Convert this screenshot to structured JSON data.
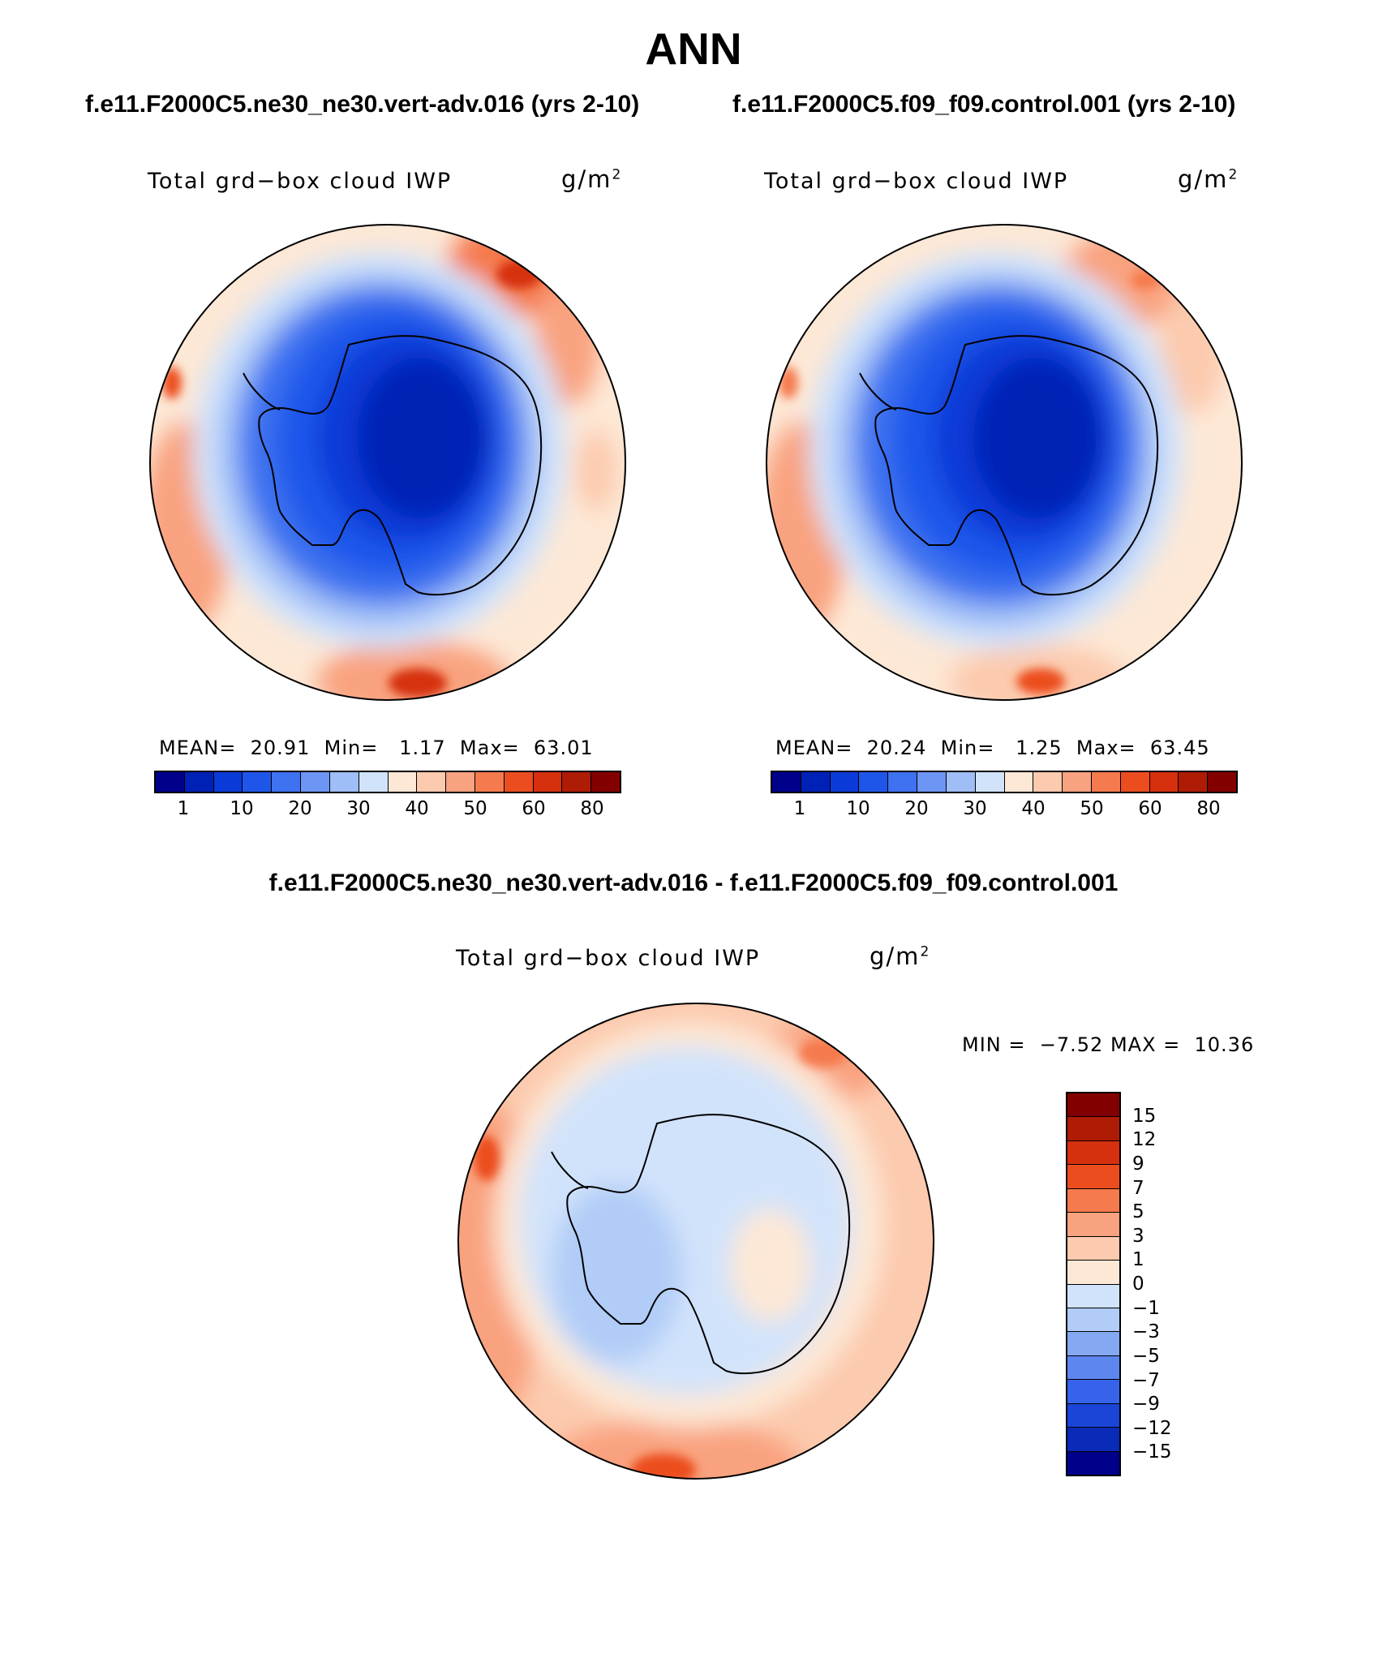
{
  "figure": {
    "title": "ANN",
    "left_case": "f.e11.F2000C5.ne30_ne30.vert-adv.016 (yrs 2-10)",
    "right_case": "f.e11.F2000C5.f09_f09.control.001 (yrs 2-10)",
    "diff_title": "f.e11.F2000C5.ne30_ne30.vert-adv.016 - f.e11.F2000C5.f09_f09.control.001"
  },
  "panels": {
    "left": {
      "variable": "Total grd−box cloud IWP",
      "unit": "g/m",
      "unit_exp": "2",
      "mean_label": "MEAN=",
      "mean": "20.91",
      "min_label": "Min=",
      "min": "1.17",
      "max_label": "Max=",
      "max": "63.01"
    },
    "right": {
      "variable": "Total grd−box cloud IWP",
      "unit": "g/m",
      "unit_exp": "2",
      "mean_label": "MEAN=",
      "mean": "20.24",
      "min_label": "Min=",
      "min": "1.25",
      "max_label": "Max=",
      "max": "63.45"
    },
    "diff": {
      "variable": "Total grd−box cloud IWP",
      "unit": "g/m",
      "unit_exp": "2",
      "min_label": "MIN =",
      "min": "−7.52",
      "max_label": "MAX =",
      "max": "10.36"
    }
  },
  "colorbars": {
    "abs_colors": [
      "#00008b",
      "#0021b5",
      "#0a3ad8",
      "#1f56ea",
      "#3e72f0",
      "#6d95f3",
      "#9fbdf6",
      "#d1e3fb",
      "#fde8d6",
      "#fccaae",
      "#f9a27f",
      "#f57a4d",
      "#ec4d1f",
      "#d6300f",
      "#ae1c05",
      "#820000"
    ],
    "abs_ticks": [
      "1",
      "10",
      "20",
      "30",
      "40",
      "50",
      "60",
      "80"
    ],
    "diff_colors": [
      "#820000",
      "#ae1c05",
      "#d6300f",
      "#ec4d1f",
      "#f57a4d",
      "#f9a27f",
      "#fccaae",
      "#fde8d6",
      "#d1e3fb",
      "#b0ccf7",
      "#85a8f3",
      "#5d86ef",
      "#3663ea",
      "#1a45d6",
      "#0a2ab8",
      "#00008b"
    ],
    "diff_ticks": [
      "15",
      "12",
      "9",
      "7",
      "5",
      "3",
      "1",
      "0",
      "−1",
      "−3",
      "−5",
      "−7",
      "−9",
      "−12",
      "−15"
    ]
  },
  "chart_data": [
    {
      "type": "polar-contour-map",
      "region": "Antarctica / Southern Hemisphere",
      "title": "Total grd-box cloud IWP",
      "units": "g/m2",
      "case": "f.e11.F2000C5.ne30_ne30.vert-adv.016 (yrs 2-10)",
      "mean": 20.91,
      "min": 1.17,
      "max": 63.01,
      "levels": [
        1,
        5,
        10,
        15,
        20,
        25,
        30,
        35,
        40,
        45,
        50,
        55,
        60,
        70,
        80
      ]
    },
    {
      "type": "polar-contour-map",
      "region": "Antarctica / Southern Hemisphere",
      "title": "Total grd-box cloud IWP",
      "units": "g/m2",
      "case": "f.e11.F2000C5.f09_f09.control.001 (yrs 2-10)",
      "mean": 20.24,
      "min": 1.25,
      "max": 63.45,
      "levels": [
        1,
        5,
        10,
        15,
        20,
        25,
        30,
        35,
        40,
        45,
        50,
        55,
        60,
        70,
        80
      ]
    },
    {
      "type": "polar-contour-map-difference",
      "region": "Antarctica / Southern Hemisphere",
      "title": "Total grd-box cloud IWP",
      "units": "g/m2",
      "min": -7.52,
      "max": 10.36,
      "levels": [
        -15,
        -12,
        -9,
        -7,
        -5,
        -3,
        -1,
        0,
        1,
        3,
        5,
        7,
        9,
        12,
        15
      ]
    }
  ]
}
